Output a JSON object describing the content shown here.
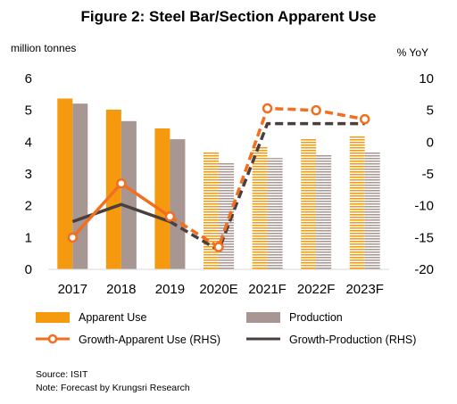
{
  "title": "Figure 2: Steel Bar/Section Apparent Use",
  "left_axis_unit": "million tonnes",
  "right_axis_unit": "% YoY",
  "source": "Source: ISIT",
  "note": "Note: Forecast by Krungsri Research",
  "colors": {
    "apparent_use": "#F59A0E",
    "production": "#A79691",
    "growth_apparent": "#F26F1F",
    "growth_production": "#4A3F3D",
    "forecast_stripe_bg": "#ffffff"
  },
  "chart_data": {
    "type": "bar",
    "title": "Figure 2: Steel Bar/Section Apparent Use",
    "categories": [
      "2017",
      "2018",
      "2019",
      "2020E",
      "2021F",
      "2022F",
      "2023F"
    ],
    "forecast_from_index": 3,
    "left_axis": {
      "label": "million tonnes",
      "ylim": [
        0,
        6
      ],
      "ticks": [
        "0",
        "1",
        "2",
        "3",
        "4",
        "5",
        "6"
      ]
    },
    "right_axis": {
      "label": "% YoY",
      "ylim": [
        -20,
        10
      ],
      "ticks": [
        "-20",
        "-15",
        "-10",
        "-5",
        "0",
        "5",
        "10"
      ]
    },
    "series": [
      {
        "name": "Apparent Use",
        "kind": "bar",
        "axis": "left",
        "values": [
          5.37,
          5.02,
          4.43,
          3.68,
          3.87,
          4.13,
          4.2
        ]
      },
      {
        "name": "Production",
        "kind": "bar",
        "axis": "left",
        "values": [
          5.21,
          4.66,
          4.09,
          3.38,
          3.5,
          3.6,
          3.7
        ]
      },
      {
        "name": "Growth-Apparent Use (RHS)",
        "kind": "line",
        "axis": "right",
        "marker": "circle",
        "values": [
          -15,
          -6.5,
          -11.7,
          -16.5,
          5.3,
          5.0,
          3.6
        ]
      },
      {
        "name": "Growth-Production (RHS)",
        "kind": "line",
        "axis": "right",
        "marker": "none",
        "values": [
          -12.5,
          -9.8,
          -12.5,
          -17,
          2.9,
          2.9,
          2.9
        ]
      }
    ],
    "legend": [
      {
        "label": "Apparent Use",
        "type": "bar-orange"
      },
      {
        "label": "Production",
        "type": "bar-brown"
      },
      {
        "label": "Growth-Apparent Use (RHS)",
        "type": "line-orange-marker"
      },
      {
        "label": "Growth-Production (RHS)",
        "type": "line-dark"
      }
    ],
    "legend_position": "bottom",
    "grid": false
  }
}
